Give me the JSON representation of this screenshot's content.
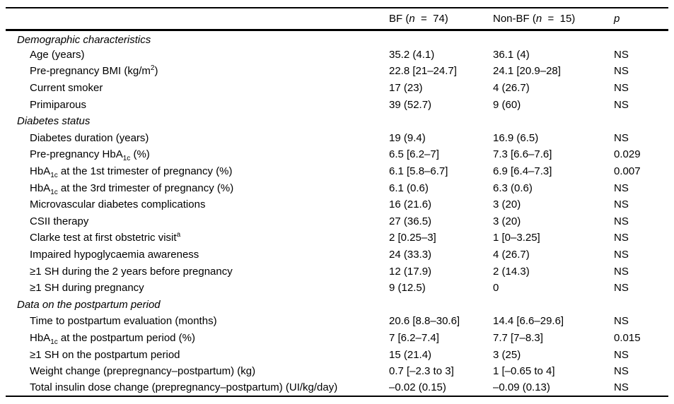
{
  "colors": {
    "background": "#ffffff",
    "text": "#000000",
    "rule": "#000000"
  },
  "table": {
    "header": {
      "label": "",
      "bf": [
        {
          "t": "BF ("
        },
        {
          "t": "n",
          "i": true
        },
        {
          "t": "  =  "
        },
        {
          "t": "74)"
        }
      ],
      "nonbf": [
        {
          "t": "Non-BF ("
        },
        {
          "t": "n",
          "i": true
        },
        {
          "t": "  =  "
        },
        {
          "t": "15)"
        }
      ],
      "p": [
        {
          "t": "p",
          "i": true
        }
      ]
    },
    "rows": [
      {
        "type": "section",
        "label": "Demographic characteristics",
        "bf": "",
        "nonbf": "",
        "p": ""
      },
      {
        "type": "item",
        "label": "Age (years)",
        "bf": "35.2 (4.1)",
        "nonbf": "36.1 (4)",
        "p": "NS"
      },
      {
        "type": "item",
        "label": [
          {
            "t": "Pre-pregnancy BMI (kg/m"
          },
          {
            "t": "2",
            "sup": true
          },
          {
            "t": ")"
          }
        ],
        "bf": "22.8 [21–24.7]",
        "nonbf": "24.1 [20.9–28]",
        "p": "NS"
      },
      {
        "type": "item",
        "label": "Current smoker",
        "bf": "17 (23)",
        "nonbf": "4 (26.7)",
        "p": "NS"
      },
      {
        "type": "item",
        "label": "Primiparous",
        "bf": "39 (52.7)",
        "nonbf": "9 (60)",
        "p": "NS"
      },
      {
        "type": "section",
        "label": "Diabetes status",
        "bf": "",
        "nonbf": "",
        "p": ""
      },
      {
        "type": "item",
        "label": "Diabetes duration (years)",
        "bf": "19 (9.4)",
        "nonbf": "16.9 (6.5)",
        "p": "NS"
      },
      {
        "type": "item",
        "label": [
          {
            "t": "Pre-pregnancy HbA"
          },
          {
            "t": "1c",
            "sub": true
          },
          {
            "t": " (%)"
          }
        ],
        "bf": "6.5 [6.2–7]",
        "nonbf": "7.3 [6.6–7.6]",
        "p": "0.029"
      },
      {
        "type": "item",
        "label": [
          {
            "t": "HbA"
          },
          {
            "t": "1c",
            "sub": true
          },
          {
            "t": " at the 1st trimester of pregnancy (%)"
          }
        ],
        "bf": "6.1 [5.8–6.7]",
        "nonbf": "6.9 [6.4–7.3]",
        "p": "0.007"
      },
      {
        "type": "item",
        "label": [
          {
            "t": "HbA"
          },
          {
            "t": "1c",
            "sub": true
          },
          {
            "t": " at the 3rd trimester of pregnancy (%)"
          }
        ],
        "bf": "6.1 (0.6)",
        "nonbf": "6.3 (0.6)",
        "p": "NS"
      },
      {
        "type": "item",
        "label": "Microvascular diabetes complications",
        "bf": "16 (21.6)",
        "nonbf": "3 (20)",
        "p": "NS"
      },
      {
        "type": "item",
        "label": "CSII therapy",
        "bf": "27 (36.5)",
        "nonbf": "3 (20)",
        "p": "NS"
      },
      {
        "type": "item",
        "label": [
          {
            "t": "Clarke test at first obstetric visit"
          },
          {
            "t": "a",
            "sup": true
          }
        ],
        "bf": "2 [0.25–3]",
        "nonbf": "1 [0–3.25]",
        "p": "NS"
      },
      {
        "type": "item",
        "label": "Impaired hypoglycaemia awareness",
        "bf": "24 (33.3)",
        "nonbf": "4 (26.7)",
        "p": "NS"
      },
      {
        "type": "item",
        "label": "≥1 SH during the 2 years before pregnancy",
        "bf": "12 (17.9)",
        "nonbf": "2 (14.3)",
        "p": "NS"
      },
      {
        "type": "item",
        "label": "≥1 SH during pregnancy",
        "bf": "9 (12.5)",
        "nonbf": "0",
        "p": "NS"
      },
      {
        "type": "section",
        "label": "Data on the postpartum period",
        "bf": "",
        "nonbf": "",
        "p": ""
      },
      {
        "type": "item",
        "label": "Time to postpartum evaluation (months)",
        "bf": "20.6 [8.8–30.6]",
        "nonbf": "14.4 [6.6–29.6]",
        "p": "NS"
      },
      {
        "type": "item",
        "label": [
          {
            "t": "HbA"
          },
          {
            "t": "1c",
            "sub": true
          },
          {
            "t": " at the postpartum period (%)"
          }
        ],
        "bf": "7 [6.2–7.4]",
        "nonbf": "7.7 [7–8.3]",
        "p": "0.015"
      },
      {
        "type": "item",
        "label": "≥1 SH on the postpartum period",
        "bf": "15 (21.4)",
        "nonbf": "3 (25)",
        "p": "NS"
      },
      {
        "type": "item",
        "label": "Weight change (prepregnancy–postpartum) (kg)",
        "bf": "0.7 [–2.3 to 3]",
        "nonbf": "1 [–0.65 to 4]",
        "p": "NS"
      },
      {
        "type": "item",
        "label": "Total insulin dose change (prepregnancy–postpartum) (UI/kg/day)",
        "bf": "–0.02 (0.15)",
        "nonbf": "–0.09 (0.13)",
        "p": "NS"
      }
    ]
  }
}
